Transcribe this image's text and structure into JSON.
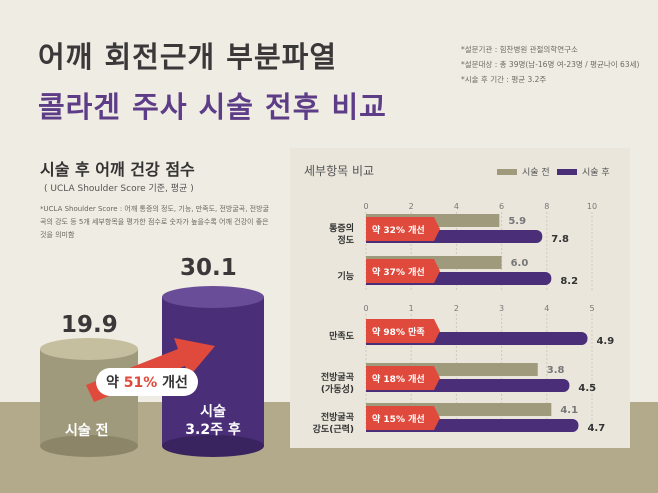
{
  "title_line1": "어깨 회전근개 부분파열",
  "title_line2": "콜라겐 주사 시술 전후 비교",
  "meta": [
    "*설문기관 : 힘찬병원 관절의학연구소",
    "*설문대상 : 총 39명(남-16명 여-23명 / 평균나이 63세)",
    "*시술 후 기간 : 평균 3.2주"
  ],
  "left": {
    "title": "시술 후 어깨 건강 점수",
    "subtitle": "( UCLA Shoulder Score 기준, 평균 )",
    "note": "*UCLA Shoulder Score : 어깨 통증의 정도, 기능, 만족도, 전방굴곡, 전방굴곡의 강도 등 5개 세부항목을 평가한 점수로 숫자가 높을수록 어깨 건강이 좋은 것을 의미함",
    "before_value": "19.9",
    "before_label": "시술 전",
    "after_value": "30.1",
    "after_label_1": "시술",
    "after_label_2": "3.2주 후",
    "badge_prefix": "약 ",
    "badge_pct": "51%",
    "badge_suffix": " 개선"
  },
  "panel_title": "세부항목 비교",
  "colors": {
    "before": "#a09a7c",
    "after": "#4a2f78",
    "red": "#e04a3c",
    "purple": "#5d3d87"
  },
  "chart_data": [
    {
      "type": "bar",
      "legend": [
        "시술 전",
        "시술 후"
      ],
      "legend_position": "top-right",
      "xlim": [
        0,
        10
      ],
      "ticks": [
        "0",
        "2",
        "4",
        "6",
        "8",
        "10"
      ],
      "categories": [
        {
          "label": [
            "통증의",
            "정도"
          ],
          "before": 5.9,
          "after": 7.8,
          "before_label": "5.9",
          "after_label": "7.8",
          "tag": "약 32% 개선"
        },
        {
          "label": [
            "기능"
          ],
          "before": 6.0,
          "after": 8.2,
          "before_label": "6.0",
          "after_label": "8.2",
          "tag": "약 37% 개선"
        }
      ]
    },
    {
      "type": "bar",
      "xlim": [
        0,
        5
      ],
      "ticks": [
        "0",
        "1",
        "2",
        "3",
        "4",
        "5"
      ],
      "categories": [
        {
          "label": [
            "만족도"
          ],
          "before": 0,
          "after": 4.9,
          "before_label": "0",
          "after_label": "4.9",
          "tag": "약 98% 만족"
        },
        {
          "label": [
            "전방굴곡",
            "(가동성)"
          ],
          "before": 3.8,
          "after": 4.5,
          "before_label": "3.8",
          "after_label": "4.5",
          "tag": "약 18% 개선"
        },
        {
          "label": [
            "전방굴곡",
            "강도(근력)"
          ],
          "before": 4.1,
          "after": 4.7,
          "before_label": "4.1",
          "after_label": "4.7",
          "tag": "약 15% 개선"
        }
      ]
    }
  ]
}
